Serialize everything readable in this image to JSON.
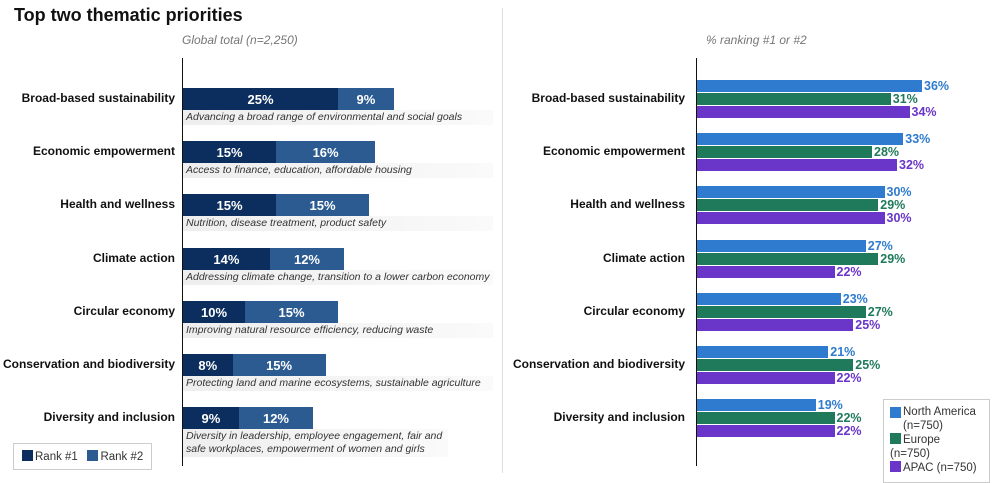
{
  "title": "Top two thematic priorities",
  "chart_data": [
    {
      "type": "bar",
      "orientation": "horizontal",
      "stacked": true,
      "subtitle": "Global total (n=2,250)",
      "categories": [
        "Broad-based sustainability",
        "Economic empowerment",
        "Health and wellness",
        "Climate action",
        "Circular economy",
        "Conservation and biodiversity",
        "Diversity and inclusion"
      ],
      "descriptions": [
        "Advancing a broad range of environmental and social goals",
        "Access to finance, education, affordable housing",
        "Nutrition, disease treatment, product safety",
        "Addressing climate change, transition to a lower carbon economy",
        "Improving natural resource efficiency, reducing waste",
        "Protecting land and marine ecosystems, sustainable agriculture",
        "Diversity in leadership, employee engagement, fair and safe workplaces, empowerment of women and girls"
      ],
      "series": [
        {
          "name": "Rank #1",
          "color": "#0b2e5e",
          "values": [
            25,
            15,
            15,
            14,
            10,
            8,
            9
          ]
        },
        {
          "name": "Rank #2",
          "color": "#2b5b91",
          "values": [
            9,
            16,
            15,
            12,
            15,
            15,
            12
          ]
        }
      ],
      "legend": "bottom-left",
      "unit": "%"
    },
    {
      "type": "bar",
      "orientation": "horizontal",
      "grouped": true,
      "subtitle": "% ranking #1 or #2",
      "categories": [
        "Broad-based sustainability",
        "Economic empowerment",
        "Health and wellness",
        "Climate action",
        "Circular economy",
        "Conservation and biodiversity",
        "Diversity and inclusion"
      ],
      "series": [
        {
          "name": "North America (n=750)",
          "color": "#2e7bcf",
          "values": [
            36,
            33,
            30,
            27,
            23,
            21,
            19
          ]
        },
        {
          "name": "Europe (n=750)",
          "color": "#1e7a5a",
          "values": [
            31,
            28,
            29,
            29,
            27,
            25,
            22
          ]
        },
        {
          "name": "APAC (n=750)",
          "color": "#6a35c9",
          "values": [
            34,
            32,
            30,
            22,
            25,
            22,
            22
          ]
        }
      ],
      "legend": "bottom-right",
      "unit": "%"
    }
  ]
}
